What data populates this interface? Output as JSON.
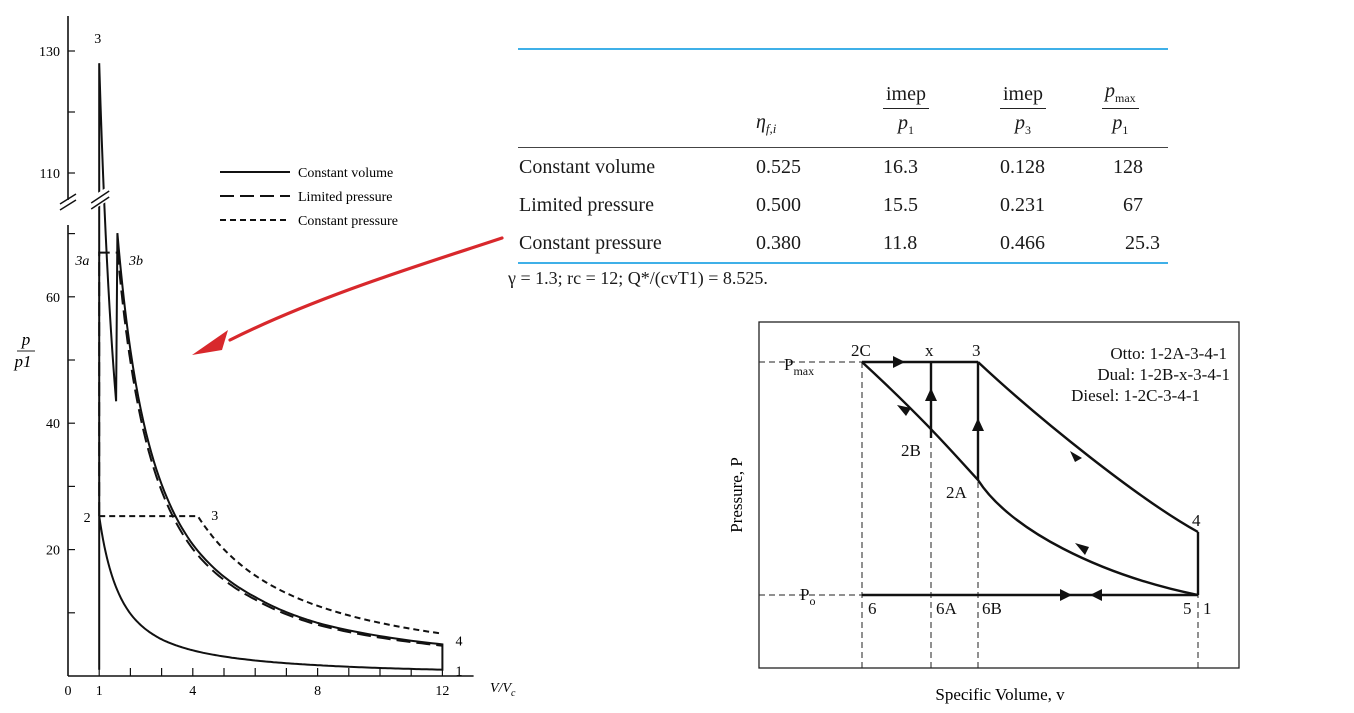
{
  "chart_data": [
    {
      "type": "line",
      "title": "",
      "xlabel": "V/Vc",
      "ylabel": "p/p1",
      "x_ticks": [
        "0",
        "1",
        "4",
        "8",
        "12"
      ],
      "y_ticks": [
        "20",
        "40",
        "60",
        "110",
        "130"
      ],
      "xlim": [
        0,
        13
      ],
      "y_axis_break": true,
      "legend_position": "top-right",
      "series": [
        {
          "name": "Constant volume",
          "style": "solid",
          "pmax": 128,
          "points": [
            [
              1,
              1
            ],
            [
              1,
              128
            ],
            [
              2,
              51.6
            ],
            [
              4,
              20.8
            ],
            [
              6,
              12.5
            ],
            [
              8,
              8.4
            ],
            [
              12,
              5.0
            ],
            [
              12,
              1
            ],
            [
              10,
              1.27
            ],
            [
              8,
              1.71
            ],
            [
              6,
              2.46
            ],
            [
              4,
              4.06
            ],
            [
              3,
              5.8
            ],
            [
              2,
              9.85
            ],
            [
              1,
              25.3
            ]
          ]
        },
        {
          "name": "Limited pressure",
          "style": "long-dash",
          "pmax": 67,
          "points": [
            [
              1,
              25.3
            ],
            [
              1,
              67
            ],
            [
              1.59,
              67
            ],
            [
              2,
              49.8
            ],
            [
              4,
              20.1
            ],
            [
              6,
              12.1
            ],
            [
              8,
              8.1
            ],
            [
              12,
              4.8
            ]
          ]
        },
        {
          "name": "Constant pressure",
          "style": "short-dash",
          "pmax": 25.3,
          "points": [
            [
              1,
              25.3
            ],
            [
              4.16,
              25.3
            ],
            [
              6,
              15.9
            ],
            [
              8,
              11.1
            ],
            [
              12,
              6.7
            ]
          ]
        }
      ],
      "point_labels": [
        "3",
        "3a",
        "3b",
        "2",
        "3",
        "4",
        "1"
      ]
    },
    {
      "type": "line",
      "title": "",
      "xlabel": "Specific Volume, v",
      "ylabel": "Pressure, P",
      "y_marks": [
        "Pmax",
        "Po"
      ],
      "legend_position": "top-right",
      "cycles": [
        {
          "name": "Otto",
          "path": ": 1-2A-3-4-1"
        },
        {
          "name": "Dual",
          "path": ": 1-2B-x-3-4-1"
        },
        {
          "name": "Diesel",
          "path": ": 1-2C-3-4-1"
        }
      ],
      "point_labels": [
        "2C",
        "x",
        "3",
        "2B",
        "2A",
        "4",
        "6",
        "6A",
        "6B",
        "5",
        "1"
      ]
    }
  ],
  "table": {
    "headers": [
      "",
      "ηf,i",
      "imep / p1",
      "imep / p3",
      "pmax / p1"
    ],
    "rows": [
      {
        "label": "Constant volume",
        "values": [
          "0.525",
          "16.3",
          "0.128",
          "128"
        ]
      },
      {
        "label": "Limited pressure",
        "values": [
          "0.500",
          "15.5",
          "0.231",
          "67"
        ]
      },
      {
        "label": "Constant pressure",
        "values": [
          "0.380",
          "11.8",
          "0.466",
          "25.3"
        ]
      }
    ],
    "note": "γ = 1.3; rc = 12; Q*/(cvT1) = 8.525.",
    "rule_color": "#3fb0e8"
  },
  "annotation": {
    "arrow_color": "#d8282c"
  },
  "texts": {
    "ylabel_num": "p",
    "ylabel_den": "p1",
    "xlabel_num": "V",
    "xlabel_den": "c",
    "imep": "imep",
    "p1": "p",
    "p3": "p",
    "pmax": "p",
    "sub1": "1",
    "sub3": "3",
    "submax": "max",
    "eta": "η",
    "eta_sub": "f,i",
    "pmax_mark": "P",
    "pmax_mark_sub": "max",
    "po_mark": "P",
    "po_mark_sub": "o"
  }
}
